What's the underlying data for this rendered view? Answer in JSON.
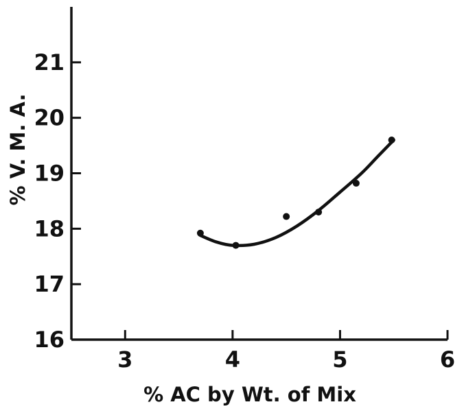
{
  "chart_data": {
    "type": "scatter",
    "title": "",
    "xlabel": "% AC by Wt. of Mix",
    "ylabel": "% V. M. A.",
    "xlim": [
      2.5,
      6.0
    ],
    "ylim": [
      16,
      22
    ],
    "x_ticks": [
      "3",
      "4",
      "5",
      "6"
    ],
    "y_ticks": [
      "16",
      "17",
      "18",
      "19",
      "20",
      "21"
    ],
    "grid": false,
    "legend": "none",
    "series": [
      {
        "kind": "points",
        "points": [
          {
            "x": 3.7,
            "y": 17.92
          },
          {
            "x": 4.03,
            "y": 17.7
          },
          {
            "x": 4.5,
            "y": 18.22
          },
          {
            "x": 4.8,
            "y": 18.3
          },
          {
            "x": 5.15,
            "y": 18.82
          },
          {
            "x": 5.48,
            "y": 19.6
          }
        ]
      },
      {
        "kind": "fitted-curve",
        "points": [
          {
            "x": 3.7,
            "y": 17.88
          },
          {
            "x": 3.85,
            "y": 17.76
          },
          {
            "x": 4.0,
            "y": 17.7
          },
          {
            "x": 4.2,
            "y": 17.72
          },
          {
            "x": 4.4,
            "y": 17.84
          },
          {
            "x": 4.6,
            "y": 18.05
          },
          {
            "x": 4.8,
            "y": 18.33
          },
          {
            "x": 5.0,
            "y": 18.66
          },
          {
            "x": 5.2,
            "y": 19.0
          },
          {
            "x": 5.35,
            "y": 19.3
          },
          {
            "x": 5.5,
            "y": 19.6
          }
        ]
      }
    ]
  },
  "style": {
    "ink": "#111111",
    "background": "#ffffff"
  }
}
